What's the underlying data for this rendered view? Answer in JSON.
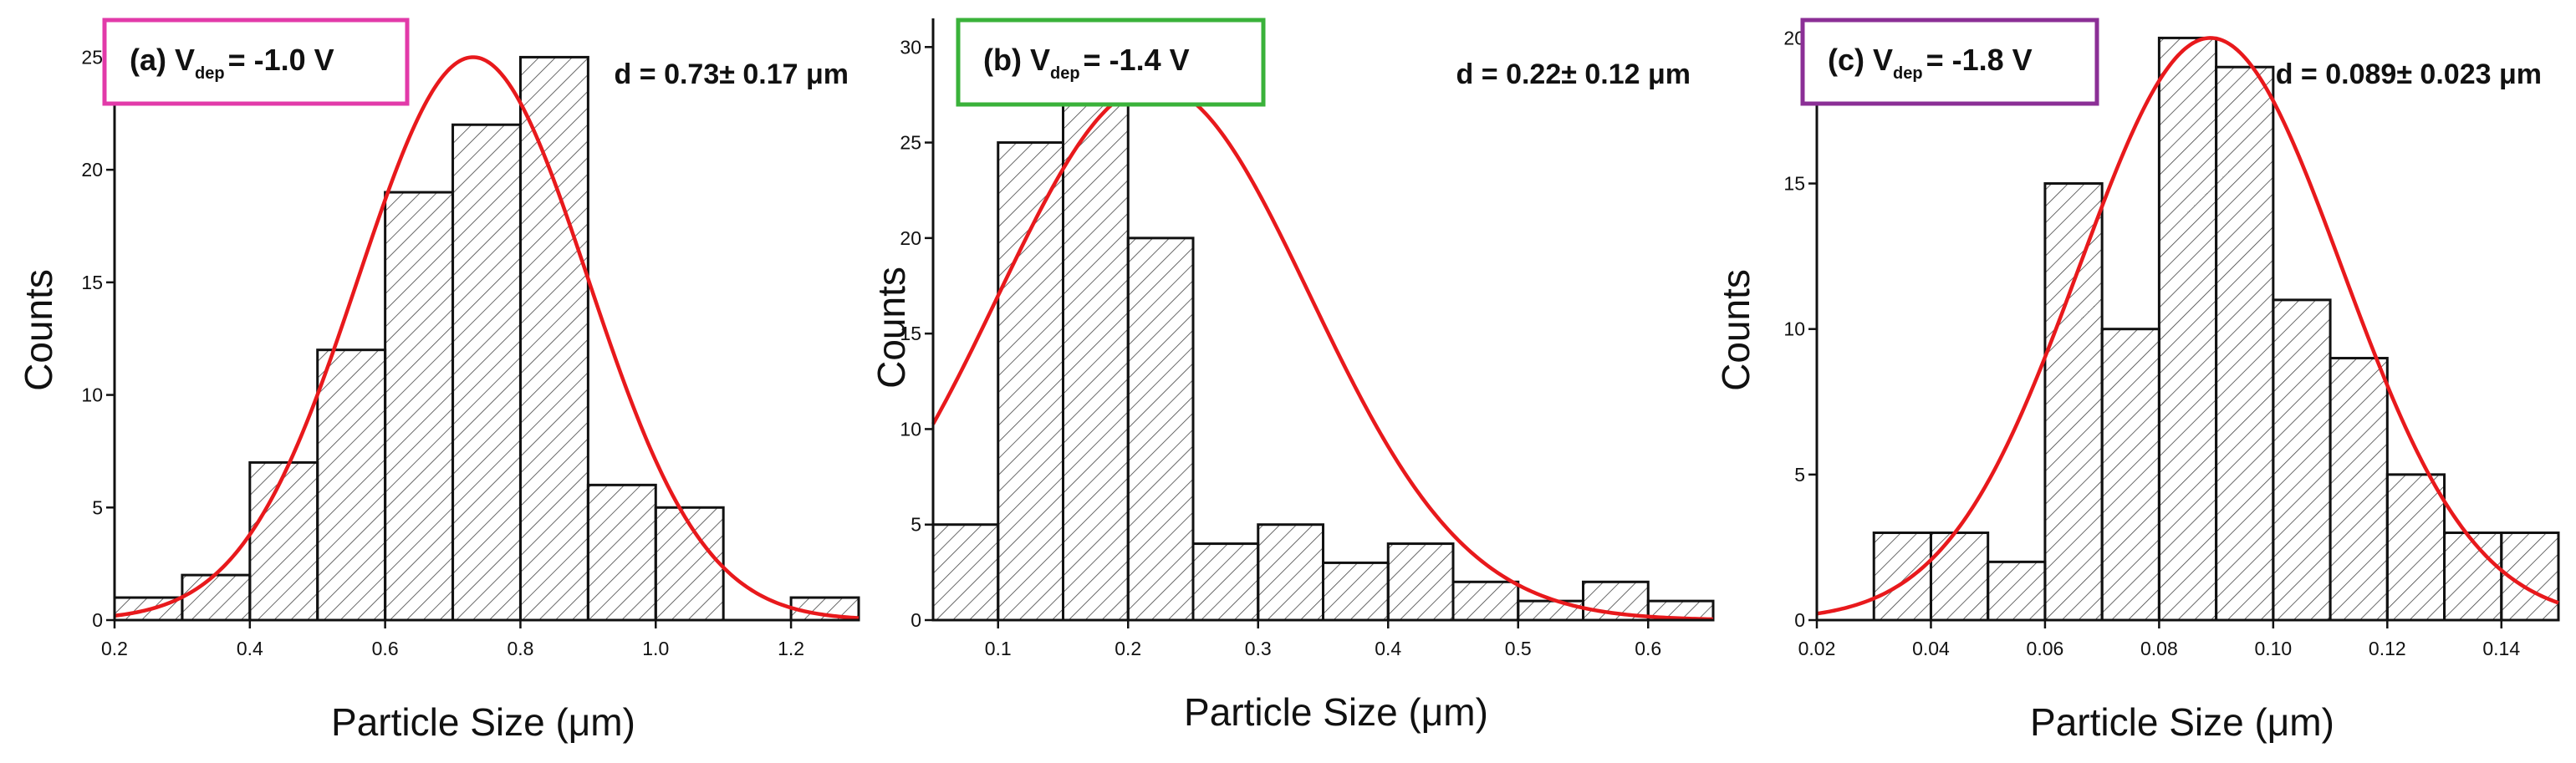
{
  "chart_data": [
    {
      "type": "bar",
      "panel": "(a)",
      "condition_prefix": "(a) V",
      "condition_sub": "dep",
      "condition_value": "= -1.0 V",
      "label_border_color": "#e23aa9",
      "stat_text": "d = 0.73± 0.17 μm",
      "xlabel": "Particle Size (μm)",
      "ylabel": "Counts",
      "xlim": [
        0.2,
        1.3
      ],
      "ylim": [
        0,
        26.5
      ],
      "xticks": [
        "0.2",
        "0.4",
        "0.6",
        "0.8",
        "1.0",
        "1.2"
      ],
      "xtick_values": [
        0.2,
        0.4,
        0.6,
        0.8,
        1.0,
        1.2
      ],
      "yticks": [
        "0",
        "5",
        "10",
        "15",
        "20",
        "25"
      ],
      "ytick_values": [
        0,
        5,
        10,
        15,
        20,
        25
      ],
      "bin_width": 0.1,
      "bin_starts": [
        0.2,
        0.3,
        0.4,
        0.5,
        0.6,
        0.7,
        0.8,
        0.9,
        1.0,
        1.2
      ],
      "values": [
        1,
        2,
        7,
        12,
        19,
        22,
        25,
        6,
        5,
        1
      ],
      "fit": {
        "type": "gaussian",
        "mean": 0.73,
        "sigma": 0.17,
        "peak": 25,
        "color": "#e8191c"
      }
    },
    {
      "type": "bar",
      "panel": "(b)",
      "condition_prefix": "(b) V",
      "condition_sub": "dep",
      "condition_value": "= -1.4 V",
      "label_border_color": "#3ab23a",
      "stat_text": "d = 0.22± 0.12 μm",
      "xlabel": "Particle Size (μm)",
      "ylabel": "Counts",
      "xlim": [
        0.05,
        0.65
      ],
      "ylim": [
        0,
        31.5
      ],
      "xticks": [
        "0.1",
        "0.2",
        "0.3",
        "0.4",
        "0.5",
        "0.6"
      ],
      "xtick_values": [
        0.1,
        0.2,
        0.3,
        0.4,
        0.5,
        0.6
      ],
      "yticks": [
        "0",
        "5",
        "10",
        "15",
        "20",
        "25",
        "30"
      ],
      "ytick_values": [
        0,
        5,
        10,
        15,
        20,
        25,
        30
      ],
      "bin_width": 0.05,
      "bin_starts": [
        0.05,
        0.1,
        0.15,
        0.2,
        0.25,
        0.3,
        0.35,
        0.4,
        0.45,
        0.5,
        0.55,
        0.6
      ],
      "values": [
        5,
        25,
        28,
        20,
        4,
        5,
        3,
        4,
        2,
        1,
        2,
        1
      ],
      "fit": {
        "type": "gaussian",
        "mean": 0.22,
        "sigma": 0.12,
        "peak": 28,
        "color": "#e8191c"
      }
    },
    {
      "type": "bar",
      "panel": "(c)",
      "condition_prefix": "(c) V",
      "condition_sub": "dep",
      "condition_value": "= -1.8 V",
      "label_border_color": "#8b2f96",
      "stat_text": "d = 0.089± 0.023 μm",
      "xlabel": "Particle Size (μm)",
      "ylabel": "Counts",
      "xlim": [
        0.02,
        0.15
      ],
      "ylim": [
        0,
        20.5
      ],
      "xticks": [
        "0.02",
        "0.04",
        "0.06",
        "0.08",
        "0.10",
        "0.12",
        "0.14"
      ],
      "xtick_values": [
        0.02,
        0.04,
        0.06,
        0.08,
        0.1,
        0.12,
        0.14
      ],
      "yticks": [
        "0",
        "5",
        "10",
        "15",
        "20"
      ],
      "ytick_values": [
        0,
        5,
        10,
        15,
        20
      ],
      "bin_width": 0.01,
      "bin_starts": [
        0.03,
        0.04,
        0.05,
        0.06,
        0.07,
        0.08,
        0.09,
        0.1,
        0.11,
        0.12,
        0.13,
        0.14
      ],
      "values": [
        3,
        3,
        2,
        15,
        10,
        20,
        19,
        11,
        9,
        5,
        3,
        3
      ],
      "fit": {
        "type": "gaussian",
        "mean": 0.089,
        "sigma": 0.023,
        "peak": 20,
        "color": "#e8191c"
      }
    }
  ]
}
